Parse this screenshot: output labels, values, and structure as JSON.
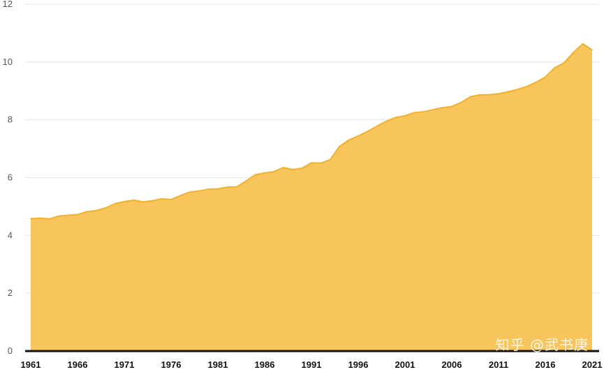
{
  "chart_data": {
    "type": "area",
    "x": [
      1961,
      1962,
      1963,
      1964,
      1965,
      1966,
      1967,
      1968,
      1969,
      1970,
      1971,
      1972,
      1973,
      1974,
      1975,
      1976,
      1977,
      1978,
      1979,
      1980,
      1981,
      1982,
      1983,
      1984,
      1985,
      1986,
      1987,
      1988,
      1989,
      1990,
      1991,
      1992,
      1993,
      1994,
      1995,
      1996,
      1997,
      1998,
      1999,
      2000,
      2001,
      2002,
      2003,
      2004,
      2005,
      2006,
      2007,
      2008,
      2009,
      2010,
      2011,
      2012,
      2013,
      2014,
      2015,
      2016,
      2017,
      2018,
      2019,
      2020,
      2021
    ],
    "series": [
      {
        "values": [
          4.58,
          4.6,
          4.57,
          4.67,
          4.7,
          4.72,
          4.82,
          4.86,
          4.95,
          5.1,
          5.17,
          5.22,
          5.16,
          5.2,
          5.27,
          5.24,
          5.38,
          5.5,
          5.54,
          5.6,
          5.61,
          5.67,
          5.68,
          5.88,
          6.1,
          6.16,
          6.21,
          6.35,
          6.28,
          6.33,
          6.51,
          6.5,
          6.62,
          7.08,
          7.3,
          7.44,
          7.6,
          7.78,
          7.95,
          8.08,
          8.14,
          8.25,
          8.28,
          8.35,
          8.42,
          8.46,
          8.6,
          8.8,
          8.86,
          8.87,
          8.9,
          8.97,
          9.05,
          9.15,
          9.3,
          9.48,
          9.8,
          9.97,
          10.33,
          10.63,
          10.42
        ],
        "color": "#f8c45c",
        "line_color": "#efb130"
      }
    ],
    "title": "",
    "xlabel": "",
    "ylabel": "",
    "xlim": [
      1961,
      2021
    ],
    "ylim": [
      0,
      12
    ],
    "y_ticks": [
      "0",
      "2",
      "4",
      "6",
      "8",
      "10",
      "12"
    ],
    "x_ticks": [
      "1961",
      "1966",
      "1971",
      "1976",
      "1981",
      "1986",
      "1991",
      "1996",
      "2001",
      "2006",
      "2011",
      "2016",
      "2021"
    ],
    "grid": true
  },
  "watermark": "知乎 @武书庚"
}
